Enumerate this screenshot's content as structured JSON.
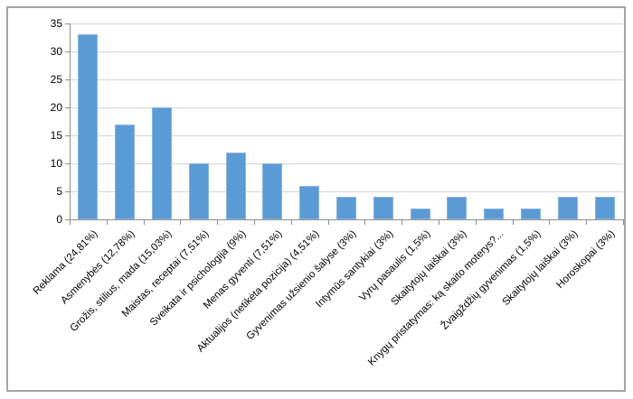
{
  "chart_data": {
    "type": "bar",
    "categories": [
      "Reklama (24,81%)",
      "Asmenybės (12,78%)",
      "Grožis, stilius, mada (15,03%)",
      "Maistas, receptai (7,51%)",
      "Sveikata ir psichologija (9%)",
      "Menas gyventi (7,51%)",
      "Aktualijos (netikėta pozicija) (4,51%)",
      "Gyvenimas užsienio šalyse (3%)",
      "Intymūs santykiai (3%)",
      "Vyrų pasaulis (1,5%)",
      "Skaitytojų laiškai (3%)",
      "Knygų pristatymas: ką skaito moterys?...",
      "Žvaigždžių gyvenimas (1,5%)",
      "Skaitytojų laiškai (3%)",
      "Horoskopai (3%)"
    ],
    "values": [
      33,
      17,
      20,
      10,
      12,
      10,
      6,
      4,
      4,
      2,
      4,
      2,
      2,
      4,
      4
    ],
    "title": "",
    "xlabel": "",
    "ylabel": "",
    "ylim": [
      0,
      35
    ],
    "yticks": [
      0,
      5,
      10,
      15,
      20,
      25,
      30,
      35
    ],
    "grid": true,
    "legend_position": "none",
    "bar_color": "#5b9bd5",
    "bar_border_color": "#87b3e0",
    "gridline_color": "#d4d4d4",
    "axis_color": "#8e8e8e",
    "text_color": "#000000",
    "frame_border_color": "#a4a4a4"
  }
}
